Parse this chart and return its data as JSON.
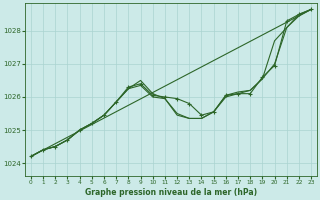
{
  "title": "Graphe pression niveau de la mer (hPa)",
  "bg_color": "#cceae8",
  "grid_color": "#aad4d0",
  "line_color": "#2d6629",
  "xlim": [
    -0.5,
    23.5
  ],
  "ylim": [
    1023.6,
    1028.85
  ],
  "yticks": [
    1024,
    1025,
    1026,
    1027,
    1028
  ],
  "xticks": [
    0,
    1,
    2,
    3,
    4,
    5,
    6,
    7,
    8,
    9,
    10,
    11,
    12,
    13,
    14,
    15,
    16,
    17,
    18,
    19,
    20,
    21,
    22,
    23
  ],
  "lines": [
    {
      "x": [
        0,
        1,
        2,
        3,
        4,
        5,
        6,
        7,
        8,
        9,
        10,
        11,
        12,
        13,
        14,
        15,
        16,
        17,
        18,
        19,
        20,
        21,
        22,
        23
      ],
      "y": [
        1024.2,
        1024.4,
        1024.5,
        1024.7,
        1025.0,
        1025.2,
        1025.45,
        1025.85,
        1026.3,
        1026.4,
        1026.05,
        1026.0,
        1025.95,
        1025.8,
        1025.45,
        1025.55,
        1026.05,
        1026.1,
        1026.1,
        1026.6,
        1026.95,
        1028.3,
        1028.5,
        1028.65
      ],
      "marker": true
    },
    {
      "x": [
        0,
        23
      ],
      "y": [
        1024.2,
        1028.65
      ],
      "marker": false
    },
    {
      "x": [
        0,
        1,
        2,
        3,
        4,
        5,
        6,
        7,
        8,
        9,
        10,
        11,
        12,
        13,
        14,
        15,
        16,
        17,
        18,
        19,
        20,
        21,
        22,
        23
      ],
      "y": [
        1024.2,
        1024.4,
        1024.5,
        1024.7,
        1025.0,
        1025.2,
        1025.45,
        1025.85,
        1026.25,
        1026.5,
        1026.1,
        1025.95,
        1025.5,
        1025.35,
        1025.35,
        1025.55,
        1026.05,
        1026.15,
        1026.2,
        1026.55,
        1027.7,
        1028.1,
        1028.5,
        1028.65
      ],
      "marker": false
    },
    {
      "x": [
        0,
        1,
        2,
        3,
        4,
        5,
        6,
        7,
        8,
        9,
        10,
        11,
        12,
        13,
        14,
        15,
        16,
        17,
        18,
        19,
        20,
        21,
        22,
        23
      ],
      "y": [
        1024.2,
        1024.4,
        1024.5,
        1024.7,
        1025.0,
        1025.2,
        1025.45,
        1025.85,
        1026.25,
        1026.35,
        1026.0,
        1025.95,
        1025.45,
        1025.35,
        1025.35,
        1025.55,
        1026.0,
        1026.1,
        1026.2,
        1026.55,
        1027.0,
        1028.1,
        1028.45,
        1028.65
      ],
      "marker": false
    }
  ]
}
